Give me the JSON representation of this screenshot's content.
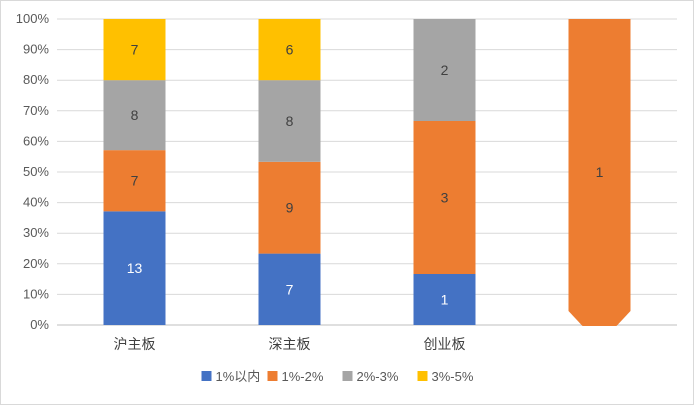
{
  "chart_data": {
    "type": "bar",
    "stacked": "percent",
    "categories": [
      "沪主板",
      "深主板",
      "创业板",
      ""
    ],
    "series": [
      {
        "name": "1%以内",
        "color": "#4472C4",
        "values": [
          13,
          7,
          1,
          0
        ]
      },
      {
        "name": "1%-2%",
        "color": "#ED7D31",
        "values": [
          7,
          9,
          3,
          1
        ]
      },
      {
        "name": "2%-3%",
        "color": "#A5A5A5",
        "values": [
          8,
          8,
          2,
          0
        ]
      },
      {
        "name": "3%-5%",
        "color": "#FFC000",
        "values": [
          7,
          6,
          0,
          0
        ]
      }
    ],
    "yticks": [
      "0%",
      "10%",
      "20%",
      "30%",
      "40%",
      "50%",
      "60%",
      "70%",
      "80%",
      "90%",
      "100%"
    ],
    "ylim": [
      0,
      100
    ],
    "grid": true,
    "legend_position": "bottom",
    "title": "",
    "xlabel": "",
    "ylabel": ""
  }
}
